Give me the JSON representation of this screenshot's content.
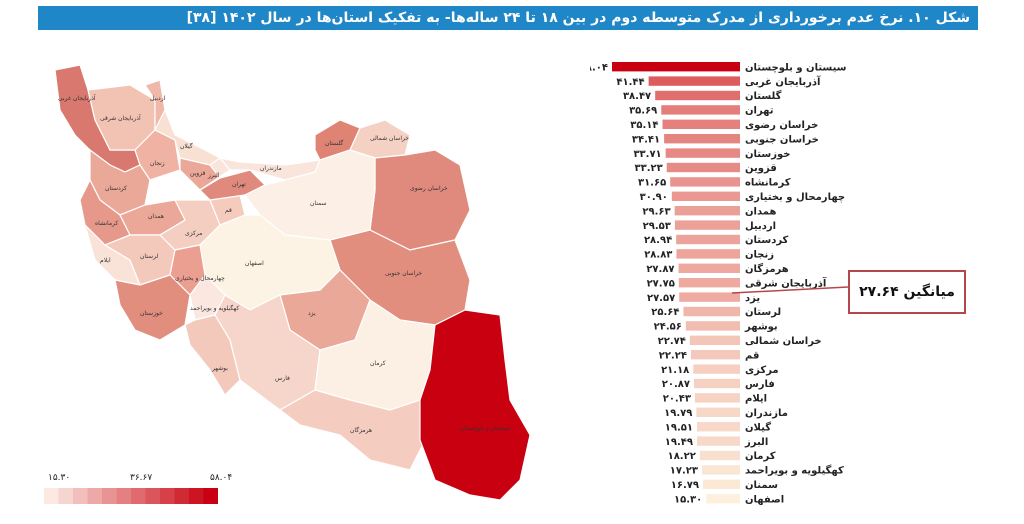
{
  "title": "شکل ۱۰. نرخ عدم برخورداری از مدرک متوسطه دوم در بین ۱۸ تا ۲۴ ساله‌ها- به تفکیک استان‌ها در سال ۱۴۰۲ [۳۸]",
  "mean_label": "میانگین ۲۷.۶۴",
  "legend": {
    "min": "۱۵.۳۰",
    "mid": "۳۶.۶۷",
    "max": "۵۸.۰۴",
    "color_low": "#fbe9e2",
    "color_high": "#c8000f"
  },
  "colors": {
    "title_bg": "#1f86c8",
    "bar_high": "#c8000f",
    "bar_low": "#fdf0dc",
    "mean_line": "#b4474b"
  },
  "map_labels": {
    "sistan": "سیستان و بلوچستان",
    "kerman": "کرمان",
    "hormozgan": "هرمزگان",
    "fars": "فارس",
    "bushehr": "بوشهر",
    "kohgiluyeh": "کهگیلویه و بویراحمد",
    "chaharmahal": "چهارمحال و بختیاری",
    "khuzestan": "خوزستان",
    "isfahan": "اصفهان",
    "yazd": "یزد",
    "south_khorasan": "خراسان جنوبی",
    "razavi": "خراسان رضوی",
    "north_khorasan": "خراسان شمالی",
    "semnan": "سمنان",
    "golestan": "گلستان",
    "mazandaran": "مازندران",
    "tehran": "تهران",
    "alborz": "البرز",
    "qazvin": "قزوین",
    "gilan": "گیلان",
    "zanjan": "زنجان",
    "ardabil": "اردبیل",
    "east_azar": "آذربایجان شرقی",
    "west_azar": "آذربایجان غربی",
    "kurdistan": "کردستان",
    "kermanshah": "کرمانشاه",
    "hamadan": "همدان",
    "markazi": "مرکزی",
    "qom": "قم",
    "lorestan": "لرستان",
    "ilam": "ایلام"
  },
  "chart_data": {
    "type": "bar",
    "orientation": "horizontal",
    "categories": [
      "سیستان و بلوچستان",
      "آذربایجان غربی",
      "گلستان",
      "تهران",
      "خراسان رضوی",
      "خراسان جنوبی",
      "خوزستان",
      "قزوین",
      "کرمانشاه",
      "چهارمحال و بختیاری",
      "همدان",
      "اردبیل",
      "کردستان",
      "زنجان",
      "هرمزگان",
      "آذربایجان شرقی",
      "یزد",
      "لرستان",
      "بوشهر",
      "خراسان شمالی",
      "قم",
      "مرکزی",
      "فارس",
      "ایلام",
      "مازندران",
      "گیلان",
      "البرز",
      "کرمان",
      "کهگیلویه و بویراحمد",
      "سمنان",
      "اصفهان"
    ],
    "value_labels": [
      "۵۸.۰۴",
      "۴۱.۴۴",
      "۳۸.۴۷",
      "۳۵.۶۹",
      "۳۵.۱۴",
      "۳۴.۴۱",
      "۳۳.۷۱",
      "۳۳.۲۳",
      "۳۱.۶۵",
      "۳۰.۹۰",
      "۲۹.۶۳",
      "۲۹.۵۳",
      "۲۸.۹۴",
      "۲۸.۸۳",
      "۲۷.۸۷",
      "۲۷.۷۵",
      "۲۷.۵۷",
      "۲۵.۶۴",
      "۲۴.۵۶",
      "۲۲.۷۴",
      "۲۲.۲۴",
      "۲۱.۱۸",
      "۲۰.۸۷",
      "۲۰.۴۳",
      "۱۹.۷۹",
      "۱۹.۵۱",
      "۱۹.۴۹",
      "۱۸.۲۲",
      "۱۷.۲۳",
      "۱۶.۷۹",
      "۱۵.۳۰"
    ],
    "values": [
      58.04,
      41.44,
      38.47,
      35.69,
      35.14,
      34.41,
      33.71,
      33.23,
      31.65,
      30.9,
      29.63,
      29.53,
      28.94,
      28.83,
      27.87,
      27.75,
      27.57,
      25.64,
      24.56,
      22.74,
      22.24,
      21.18,
      20.87,
      20.43,
      19.79,
      19.51,
      19.49,
      18.22,
      17.23,
      16.79,
      15.3
    ],
    "mean": 27.64
  }
}
